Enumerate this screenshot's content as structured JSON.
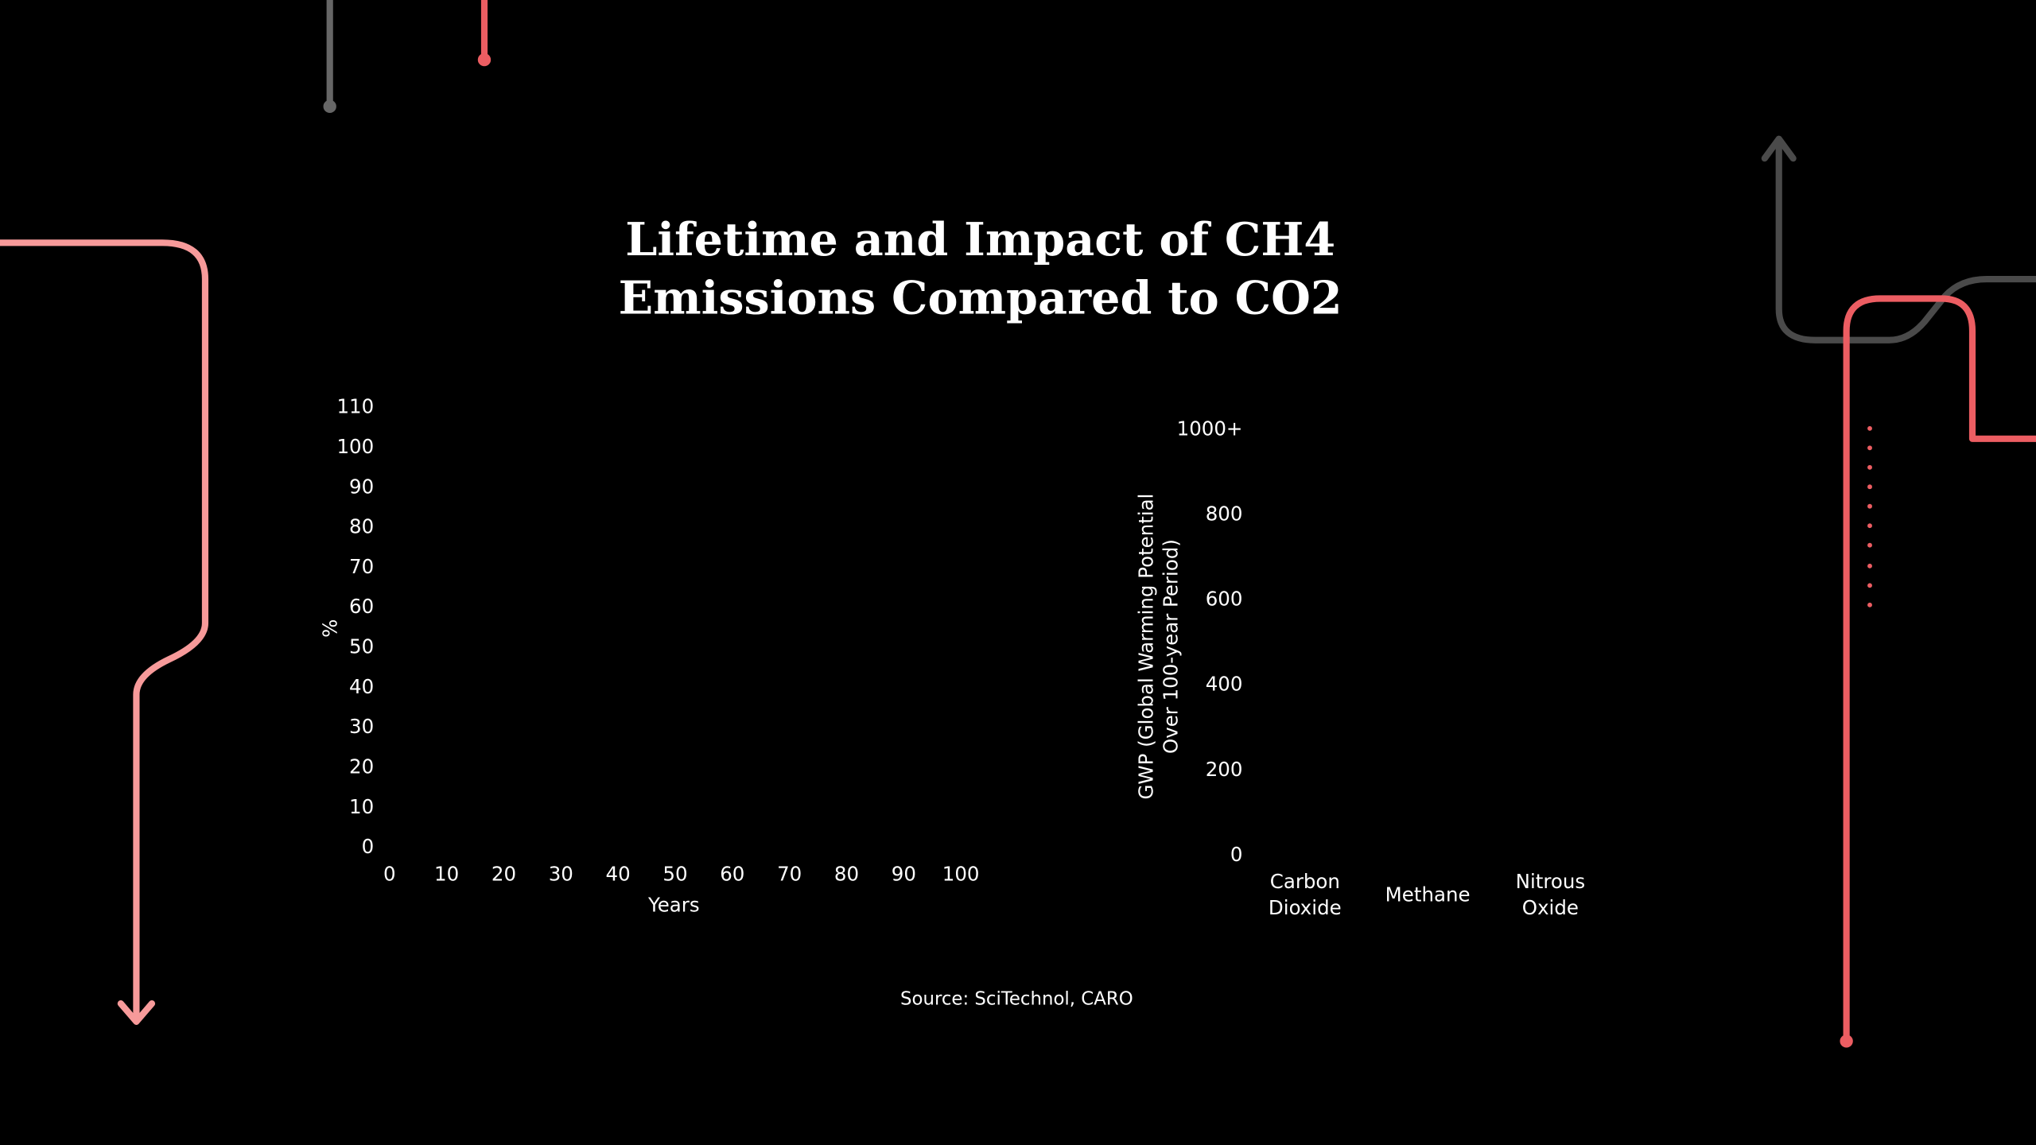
{
  "title": "Lifetime and Impact of CH4 Emissions Compared to CO2",
  "source": "Source: SciTechnol, CARO",
  "chart_data": [
    {
      "type": "line",
      "x_label": "Years",
      "y_label": "%",
      "xlim": [
        0,
        100
      ],
      "xticks": [
        0,
        10,
        20,
        30,
        40,
        50,
        60,
        70,
        80,
        90,
        100
      ],
      "ylim": [
        0,
        110
      ],
      "yticks": [
        0,
        10,
        20,
        30,
        40,
        50,
        60,
        70,
        80,
        90,
        100,
        110
      ]
    },
    {
      "type": "bar",
      "y_label": "GWP (Global Warming Potential Over 100-year Period)",
      "categories": [
        "Carbon Dioxide",
        "Methane",
        "Nitrous Oxide"
      ],
      "ylim": [
        0,
        1000
      ],
      "yticks": [
        0,
        200,
        400,
        600,
        800,
        {
          "value": 1000,
          "label": "1000+"
        }
      ]
    }
  ]
}
